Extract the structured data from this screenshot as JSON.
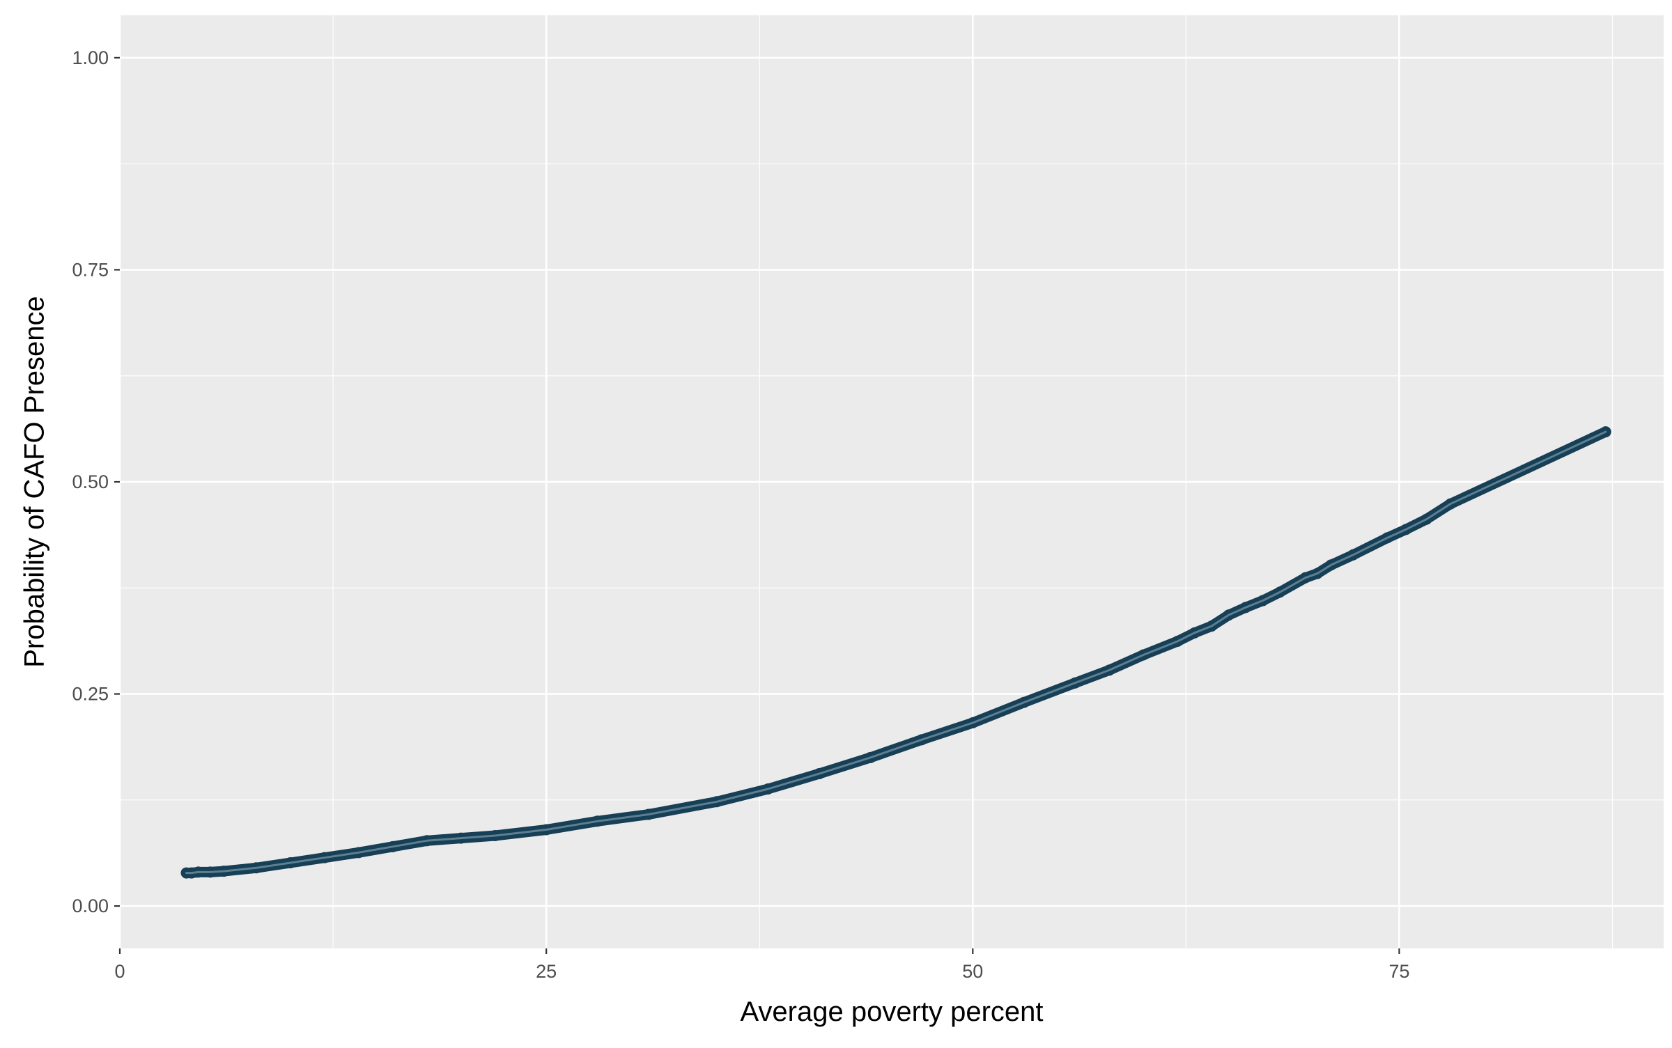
{
  "chart_data": {
    "type": "scatter",
    "title": "",
    "xlabel": "Average poverty percent",
    "ylabel": "Probability of CAFO Presence",
    "xlim": [
      0,
      90.5
    ],
    "ylim": [
      -0.05,
      1.05
    ],
    "x_ticks": [
      0,
      25,
      50,
      75
    ],
    "x_tick_labels": [
      "0",
      "25",
      "50",
      "75"
    ],
    "y_ticks": [
      0,
      0.25,
      0.5,
      0.75,
      1.0
    ],
    "y_tick_labels": [
      "0.00",
      "0.25",
      "0.50",
      "0.75",
      "1.00"
    ],
    "grid": true,
    "legend": "none",
    "series": [
      {
        "x": [
          3.9,
          4.2,
          4.6,
          5.3,
          6.1,
          8,
          10,
          12,
          14,
          16,
          18,
          20,
          22,
          25,
          28,
          31,
          35,
          38,
          41,
          44,
          47,
          50,
          53,
          56,
          58,
          60,
          62,
          63,
          64,
          65,
          66,
          67,
          68,
          69.5,
          70.2,
          71,
          72.3,
          74.3,
          75.4,
          76.6,
          78,
          87.1
        ],
        "y": [
          0.039,
          0.039,
          0.04,
          0.04,
          0.041,
          0.045,
          0.051,
          0.057,
          0.063,
          0.07,
          0.077,
          0.08,
          0.083,
          0.09,
          0.1,
          0.108,
          0.123,
          0.138,
          0.156,
          0.175,
          0.196,
          0.216,
          0.24,
          0.263,
          0.278,
          0.296,
          0.312,
          0.322,
          0.33,
          0.343,
          0.352,
          0.36,
          0.37,
          0.387,
          0.392,
          0.402,
          0.414,
          0.434,
          0.444,
          0.456,
          0.474,
          0.559
        ]
      }
    ],
    "colors": {
      "panel": "#ebebeb",
      "grid": "#ffffff",
      "point": "#173f55",
      "line": "#5c7f92"
    }
  }
}
